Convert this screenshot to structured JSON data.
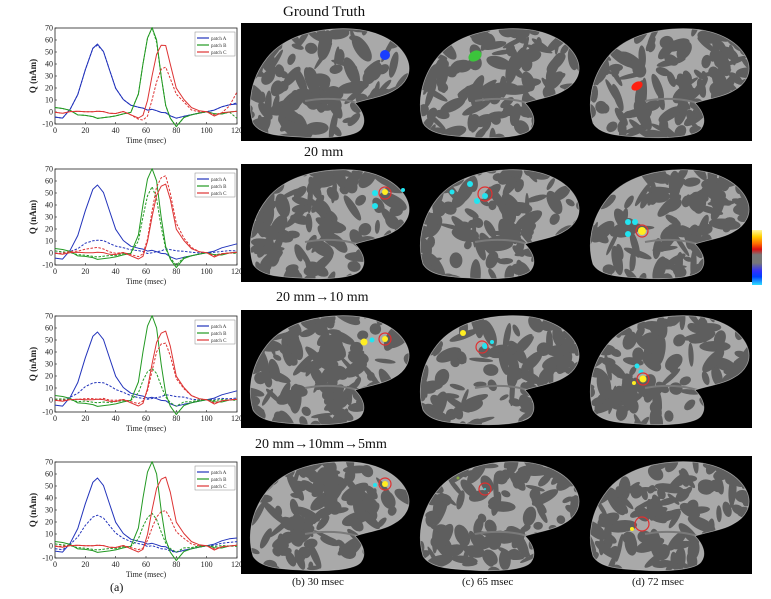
{
  "figure": {
    "rows": [
      {
        "title": "Ground Truth"
      },
      {
        "title": "20 mm"
      },
      {
        "title": "20 mm→10 mm"
      },
      {
        "title": "20 mm→10mm→5mm"
      }
    ],
    "captions": {
      "a": "(a)",
      "b": "(b)  30 msec",
      "c": "(c)  65 msec",
      "d": "(d)  72 msec"
    },
    "colorbar": {
      "colors": [
        "#ffff99",
        "#ffd000",
        "#ff6a00",
        "#e01010",
        "#777777",
        "#3030ff",
        "#30e0ff"
      ]
    },
    "markers": {
      "truth_colors": {
        "patch_A": "#1a3dff",
        "patch_B": "#3cc43c",
        "patch_C": "#ff2010"
      },
      "estimate_cyan": "#22e4f0",
      "estimate_yellow": "#ffee22",
      "circle": "#e03030"
    }
  },
  "chart_data": [
    {
      "type": "line",
      "title": "",
      "xlabel": "Time (msec)",
      "ylabel": "Q (nAm)",
      "xlim": [
        0,
        120
      ],
      "ylim": [
        -10,
        70
      ],
      "xticks": [
        0,
        20,
        40,
        60,
        80,
        100,
        120
      ],
      "yticks": [
        -10,
        0,
        10,
        20,
        30,
        40,
        50,
        60,
        70
      ],
      "legend": [
        "patch A",
        "patch B",
        "patch C"
      ],
      "legend_position": "upper right",
      "x": [
        0,
        5,
        10,
        15,
        20,
        25,
        28,
        32,
        36,
        40,
        45,
        50,
        55,
        58,
        61,
        64,
        67,
        70,
        73,
        76,
        80,
        85,
        90,
        95,
        100,
        105,
        110,
        115,
        120
      ],
      "series": [
        {
          "name": "patch A (true)",
          "style": "solid",
          "color": "#2233bb",
          "values": [
            -4,
            -5,
            2,
            15,
            35,
            53,
            57,
            50,
            35,
            20,
            10,
            6,
            4,
            3,
            2,
            2,
            1,
            0,
            -1,
            -3,
            -5,
            -4,
            -2,
            -1,
            0,
            2,
            4,
            6,
            7
          ]
        },
        {
          "name": "patch A (est)",
          "style": "dashed",
          "color": "#2233bb",
          "values": [
            -4,
            -5,
            2,
            15,
            35,
            53,
            56,
            50,
            35,
            20,
            10,
            6,
            4,
            3,
            2,
            2,
            1,
            0,
            -1,
            -3,
            -5,
            -4,
            -2,
            -1,
            0,
            2,
            4,
            6,
            8
          ]
        },
        {
          "name": "patch B (true)",
          "style": "solid",
          "color": "#229922",
          "values": [
            4,
            3,
            1,
            -2,
            -3,
            -4,
            -5,
            -5,
            -4,
            -3,
            -2,
            0,
            15,
            40,
            62,
            70,
            60,
            30,
            5,
            -5,
            -12,
            -5,
            -2,
            -1,
            0,
            -1,
            -2,
            0,
            1
          ]
        },
        {
          "name": "patch B (est)",
          "style": "dashed",
          "color": "#229922",
          "values": [
            4,
            3,
            1,
            -2,
            -3,
            -4,
            -5,
            -5,
            -4,
            -3,
            -2,
            0,
            15,
            40,
            62,
            70,
            58,
            30,
            5,
            -5,
            -12,
            -5,
            -2,
            -1,
            0,
            -1,
            -2,
            0,
            -5
          ]
        },
        {
          "name": "patch C (true)",
          "style": "solid",
          "color": "#dd3333",
          "values": [
            0,
            -1,
            0,
            1,
            0,
            0,
            1,
            0,
            -1,
            -1,
            0,
            -2,
            -5,
            -3,
            10,
            30,
            48,
            56,
            55,
            40,
            20,
            10,
            4,
            1,
            0,
            -3,
            -1,
            0,
            1
          ]
        },
        {
          "name": "patch C (est)",
          "style": "dashed",
          "color": "#dd3333",
          "values": [
            0,
            -1,
            0,
            1,
            0,
            0,
            1,
            0,
            -1,
            -1,
            0,
            -2,
            -6,
            -7,
            -3,
            10,
            25,
            36,
            37,
            28,
            15,
            8,
            2,
            0,
            0,
            -2,
            -1,
            5,
            17
          ]
        }
      ]
    },
    {
      "type": "line",
      "xlabel": "Time (msec)",
      "ylabel": "Q (nAm)",
      "xlim": [
        0,
        120
      ],
      "ylim": [
        -10,
        70
      ],
      "xticks": [
        0,
        20,
        40,
        60,
        80,
        100,
        120
      ],
      "yticks": [
        -10,
        0,
        10,
        20,
        30,
        40,
        50,
        60,
        70
      ],
      "legend": [
        "patch A",
        "patch B",
        "patch C"
      ],
      "x": [
        0,
        5,
        10,
        15,
        20,
        25,
        28,
        32,
        36,
        40,
        45,
        50,
        55,
        58,
        61,
        64,
        67,
        70,
        73,
        76,
        80,
        85,
        90,
        95,
        100,
        105,
        110,
        115,
        120
      ],
      "series": [
        {
          "name": "patch A (true)",
          "style": "solid",
          "color": "#2233bb",
          "values": [
            -4,
            -5,
            2,
            15,
            35,
            53,
            57,
            50,
            35,
            20,
            10,
            6,
            4,
            3,
            2,
            2,
            1,
            0,
            -1,
            -3,
            -5,
            -4,
            -2,
            -1,
            0,
            2,
            4,
            6,
            8
          ]
        },
        {
          "name": "patch A (est)",
          "style": "dashed",
          "color": "#2233bb",
          "values": [
            0,
            0,
            1,
            4,
            8,
            10,
            11,
            10,
            8,
            6,
            4,
            3,
            2,
            1,
            0,
            0,
            1,
            2,
            3,
            3,
            2,
            1,
            1,
            0,
            0,
            1,
            1,
            2,
            2
          ]
        },
        {
          "name": "patch B (true)",
          "style": "solid",
          "color": "#229922",
          "values": [
            4,
            3,
            1,
            -2,
            -3,
            -4,
            -5,
            -5,
            -4,
            -3,
            -2,
            0,
            15,
            40,
            62,
            70,
            60,
            30,
            5,
            -5,
            -12,
            -5,
            -2,
            -1,
            0,
            -1,
            -2,
            0,
            1
          ]
        },
        {
          "name": "patch B (est)",
          "style": "dashed",
          "color": "#229922",
          "values": [
            2,
            1,
            0,
            -1,
            -2,
            -3,
            -3,
            -3,
            -2,
            -2,
            -1,
            0,
            10,
            30,
            48,
            55,
            45,
            22,
            3,
            -4,
            -10,
            -4,
            -2,
            -1,
            0,
            -1,
            -1,
            0,
            0
          ]
        },
        {
          "name": "patch C (true)",
          "style": "solid",
          "color": "#dd3333",
          "values": [
            0,
            -1,
            0,
            1,
            0,
            0,
            1,
            0,
            -1,
            -1,
            0,
            -2,
            -5,
            -3,
            10,
            30,
            48,
            56,
            57,
            45,
            20,
            10,
            4,
            1,
            0,
            -3,
            -1,
            0,
            1
          ]
        },
        {
          "name": "patch C (est)",
          "style": "dashed",
          "color": "#dd3333",
          "values": [
            0,
            0,
            1,
            2,
            3,
            4,
            5,
            3,
            1,
            0,
            0,
            -1,
            -3,
            -1,
            12,
            35,
            55,
            63,
            64,
            50,
            25,
            12,
            5,
            1,
            0,
            -2,
            -1,
            0,
            1
          ]
        }
      ]
    },
    {
      "type": "line",
      "xlabel": "Time (msec)",
      "ylabel": "Q (nAm)",
      "xlim": [
        0,
        120
      ],
      "ylim": [
        -10,
        70
      ],
      "xticks": [
        0,
        20,
        40,
        60,
        80,
        100,
        120
      ],
      "yticks": [
        -10,
        0,
        10,
        20,
        30,
        40,
        50,
        60,
        70
      ],
      "legend": [
        "patch A",
        "patch B",
        "patch C"
      ],
      "x": [
        0,
        5,
        10,
        15,
        20,
        25,
        28,
        32,
        36,
        40,
        45,
        50,
        55,
        58,
        61,
        64,
        67,
        70,
        73,
        76,
        80,
        85,
        90,
        95,
        100,
        105,
        110,
        115,
        120
      ],
      "series": [
        {
          "name": "patch A (true)",
          "style": "solid",
          "color": "#2233bb",
          "values": [
            -4,
            -5,
            2,
            15,
            35,
            53,
            57,
            50,
            35,
            20,
            10,
            6,
            4,
            3,
            2,
            2,
            1,
            0,
            -1,
            -3,
            -5,
            -4,
            -2,
            -1,
            0,
            2,
            4,
            6,
            8
          ]
        },
        {
          "name": "patch A (est)",
          "style": "dashed",
          "color": "#2233bb",
          "values": [
            0,
            0,
            2,
            6,
            11,
            14,
            15,
            14,
            12,
            9,
            6,
            4,
            2,
            1,
            1,
            1,
            2,
            3,
            4,
            4,
            3,
            2,
            1,
            0,
            0,
            1,
            1,
            1,
            2
          ]
        },
        {
          "name": "patch B (true)",
          "style": "solid",
          "color": "#229922",
          "values": [
            4,
            3,
            1,
            -2,
            -3,
            -4,
            -5,
            -5,
            -4,
            -3,
            -2,
            0,
            15,
            40,
            62,
            70,
            60,
            30,
            5,
            -5,
            -12,
            -5,
            -2,
            -1,
            0,
            -1,
            -2,
            0,
            1
          ]
        },
        {
          "name": "patch B (est)",
          "style": "dashed",
          "color": "#229922",
          "values": [
            1,
            1,
            0,
            -1,
            -1,
            -2,
            -2,
            -2,
            -2,
            -1,
            -1,
            0,
            6,
            16,
            24,
            26,
            22,
            12,
            2,
            -2,
            -5,
            -2,
            -1,
            0,
            0,
            0,
            0,
            0,
            0
          ]
        },
        {
          "name": "patch C (true)",
          "style": "solid",
          "color": "#dd3333",
          "values": [
            0,
            -1,
            0,
            1,
            0,
            0,
            1,
            0,
            -1,
            -1,
            0,
            -2,
            -5,
            -3,
            10,
            30,
            48,
            56,
            57,
            45,
            20,
            10,
            4,
            1,
            0,
            -3,
            -1,
            0,
            1
          ]
        },
        {
          "name": "patch C (est)",
          "style": "dashed",
          "color": "#dd3333",
          "values": [
            0,
            0,
            0,
            1,
            1,
            1,
            1,
            1,
            0,
            0,
            0,
            -1,
            -3,
            -1,
            8,
            24,
            40,
            47,
            47,
            37,
            18,
            9,
            4,
            1,
            0,
            -2,
            -1,
            0,
            1
          ]
        }
      ]
    },
    {
      "type": "line",
      "xlabel": "Time (msec)",
      "ylabel": "Q (nAm)",
      "xlim": [
        0,
        120
      ],
      "ylim": [
        -10,
        70
      ],
      "xticks": [
        0,
        20,
        40,
        60,
        80,
        100,
        120
      ],
      "yticks": [
        -10,
        0,
        10,
        20,
        30,
        40,
        50,
        60,
        70
      ],
      "legend": [
        "patch A",
        "patch B",
        "patch C"
      ],
      "x": [
        0,
        5,
        10,
        15,
        20,
        25,
        28,
        32,
        36,
        40,
        45,
        50,
        55,
        58,
        61,
        64,
        67,
        70,
        73,
        76,
        80,
        85,
        90,
        95,
        100,
        105,
        110,
        115,
        120
      ],
      "series": [
        {
          "name": "patch A (true)",
          "style": "solid",
          "color": "#2233bb",
          "values": [
            -4,
            -5,
            2,
            15,
            35,
            53,
            57,
            50,
            35,
            20,
            10,
            6,
            4,
            3,
            2,
            2,
            1,
            0,
            -1,
            -3,
            -5,
            -4,
            -2,
            -1,
            0,
            2,
            4,
            6,
            7
          ]
        },
        {
          "name": "patch A (est)",
          "style": "dashed",
          "color": "#2233bb",
          "values": [
            -2,
            -3,
            1,
            8,
            17,
            24,
            26,
            23,
            17,
            11,
            6,
            4,
            2,
            1,
            0,
            0,
            -1,
            -2,
            -3,
            -4,
            -5,
            -4,
            -2,
            -1,
            0,
            1,
            2,
            3,
            4
          ]
        },
        {
          "name": "patch B (true)",
          "style": "solid",
          "color": "#229922",
          "values": [
            4,
            3,
            1,
            -2,
            -3,
            -4,
            -5,
            -5,
            -4,
            -3,
            -2,
            0,
            15,
            40,
            62,
            70,
            60,
            30,
            5,
            -5,
            -12,
            -5,
            -2,
            -1,
            0,
            -1,
            -2,
            0,
            1
          ]
        },
        {
          "name": "patch B (est)",
          "style": "dashed",
          "color": "#229922",
          "values": [
            2,
            1,
            0,
            -1,
            -2,
            -3,
            -3,
            -3,
            -2,
            -2,
            -1,
            0,
            6,
            16,
            24,
            27,
            22,
            12,
            2,
            -2,
            -5,
            -2,
            -1,
            0,
            0,
            0,
            0,
            0,
            0
          ]
        },
        {
          "name": "patch C (true)",
          "style": "solid",
          "color": "#dd3333",
          "values": [
            0,
            -1,
            0,
            1,
            0,
            0,
            1,
            0,
            -1,
            -1,
            0,
            -2,
            -5,
            -3,
            10,
            30,
            48,
            56,
            57,
            45,
            20,
            10,
            4,
            1,
            0,
            -3,
            -1,
            0,
            1
          ]
        },
        {
          "name": "patch C (est)",
          "style": "dashed",
          "color": "#dd3333",
          "values": [
            0,
            0,
            0,
            1,
            0,
            0,
            1,
            0,
            -1,
            -1,
            0,
            -1,
            -3,
            -2,
            5,
            15,
            24,
            29,
            29,
            23,
            12,
            6,
            2,
            0,
            0,
            -2,
            -1,
            0,
            1
          ]
        }
      ]
    }
  ]
}
